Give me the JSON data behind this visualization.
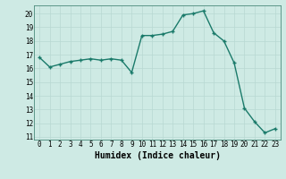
{
  "x": [
    0,
    1,
    2,
    3,
    4,
    5,
    6,
    7,
    8,
    9,
    10,
    11,
    12,
    13,
    14,
    15,
    16,
    17,
    18,
    19,
    20,
    21,
    22,
    23
  ],
  "y": [
    16.8,
    16.1,
    16.3,
    16.5,
    16.6,
    16.7,
    16.6,
    16.7,
    16.6,
    15.7,
    18.4,
    18.4,
    18.5,
    18.7,
    19.9,
    20.0,
    20.2,
    18.6,
    18.0,
    16.4,
    13.1,
    12.1,
    11.3,
    11.6
  ],
  "line_color": "#1a7a6a",
  "marker": "+",
  "marker_size": 3,
  "marker_color": "#1a7a6a",
  "bg_color": "#ceeae4",
  "grid_color": "#b8d8d2",
  "xlabel": "Humidex (Indice chaleur)",
  "xlim": [
    -0.5,
    23.5
  ],
  "ylim": [
    10.8,
    20.6
  ],
  "yticks": [
    11,
    12,
    13,
    14,
    15,
    16,
    17,
    18,
    19,
    20
  ],
  "xticks": [
    0,
    1,
    2,
    3,
    4,
    5,
    6,
    7,
    8,
    9,
    10,
    11,
    12,
    13,
    14,
    15,
    16,
    17,
    18,
    19,
    20,
    21,
    22,
    23
  ],
  "tick_fontsize": 5.5,
  "xlabel_fontsize": 7.0,
  "linewidth": 1.0
}
